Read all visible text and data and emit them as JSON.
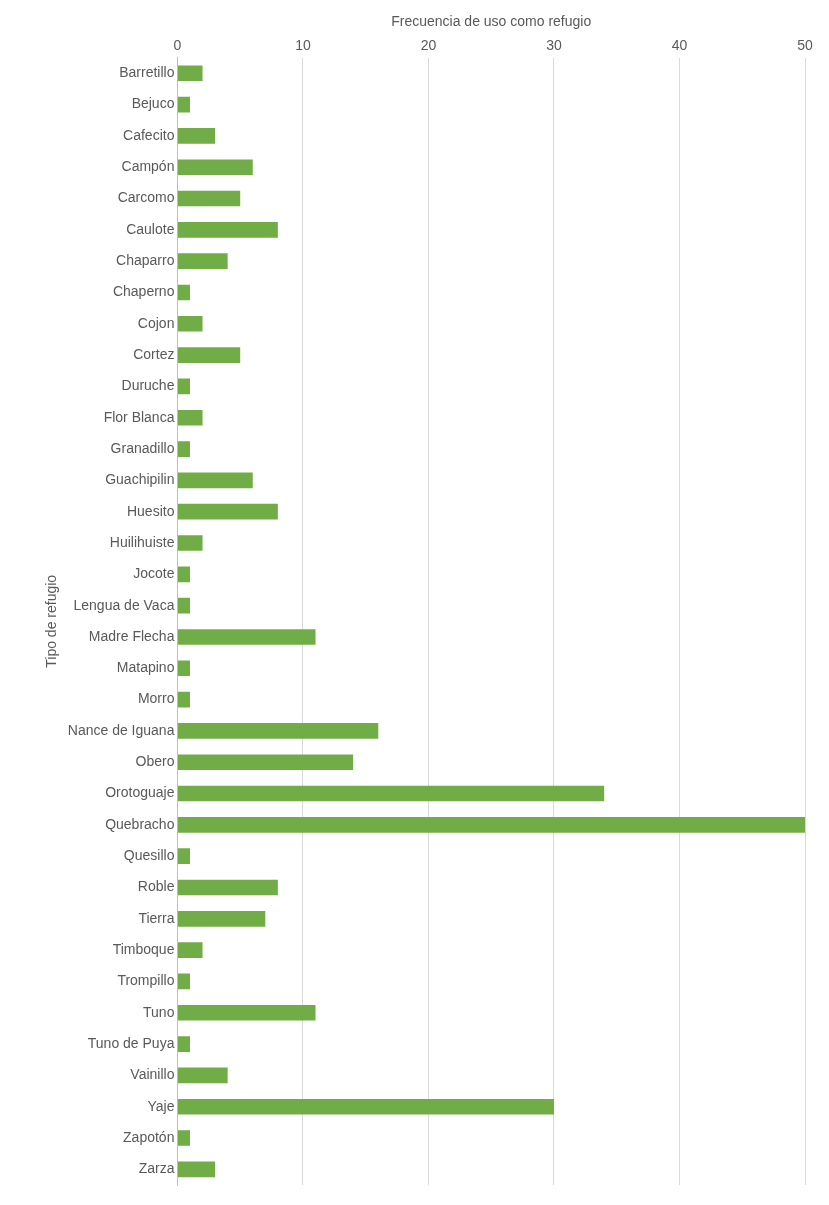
{
  "chart_data": {
    "type": "bar",
    "orientation": "horizontal",
    "xlabel": "Frecuencia de uso como refugio",
    "ylabel": "Tipo de refugio",
    "categories": [
      "Barretillo",
      "Bejuco",
      "Cafecito",
      "Campón",
      "Carcomo",
      "Caulote",
      "Chaparro",
      "Chaperno",
      "Cojon",
      "Cortez",
      "Duruche",
      "Flor Blanca",
      "Granadillo",
      "Guachipilin",
      "Huesito",
      "Huilihuiste",
      "Jocote",
      "Lengua de Vaca",
      "Madre Flecha",
      "Matapino",
      "Morro",
      "Nance de Iguana",
      "Obero",
      "Orotoguaje",
      "Quebracho",
      "Quesillo",
      "Roble",
      "Tierra",
      "Timboque",
      "Trompillo",
      "Tuno",
      "Tuno de Puya",
      "Vainillo",
      "Yaje",
      "Zapotón",
      "Zarza"
    ],
    "values": [
      2,
      1,
      3,
      6,
      5,
      8,
      4,
      1,
      2,
      5,
      1,
      2,
      1,
      6,
      8,
      2,
      1,
      1,
      11,
      1,
      1,
      16,
      14,
      34,
      50,
      1,
      8,
      7,
      2,
      1,
      11,
      1,
      4,
      30,
      1,
      3
    ],
    "color": "#70ad47",
    "xlim": [
      0,
      50
    ],
    "xticks": [
      0,
      10,
      20,
      30,
      40,
      50
    ],
    "grid": "x",
    "legend": false
  }
}
